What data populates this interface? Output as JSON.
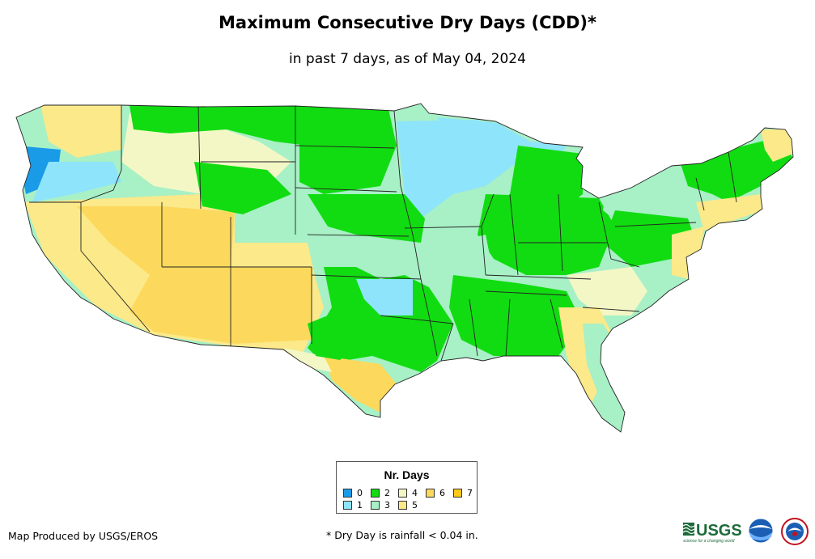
{
  "title": "Maximum Consecutive Dry Days (CDD)*",
  "subtitle": "in past 7 days, as of May 04, 2024",
  "legend": {
    "title": "Nr. Days",
    "items": [
      {
        "label": "0",
        "color": "#1a9be8"
      },
      {
        "label": "1",
        "color": "#8ee4fa"
      },
      {
        "label": "2",
        "color": "#11dc11"
      },
      {
        "label": "3",
        "color": "#a8f0c6"
      },
      {
        "label": "4",
        "color": "#f3f7c6"
      },
      {
        "label": "5",
        "color": "#fbe98a"
      },
      {
        "label": "6",
        "color": "#fcd95c"
      },
      {
        "label": "7",
        "color": "#fcc81a"
      }
    ]
  },
  "credit": "Map Produced by USGS/EROS",
  "footnote": "* Dry Day is rainfall < 0.04 in.",
  "logos": {
    "usgs": "USGS",
    "usgs_tagline": "science for a changing world",
    "noaa": "NOAA",
    "nws": "National Weather Service"
  }
}
